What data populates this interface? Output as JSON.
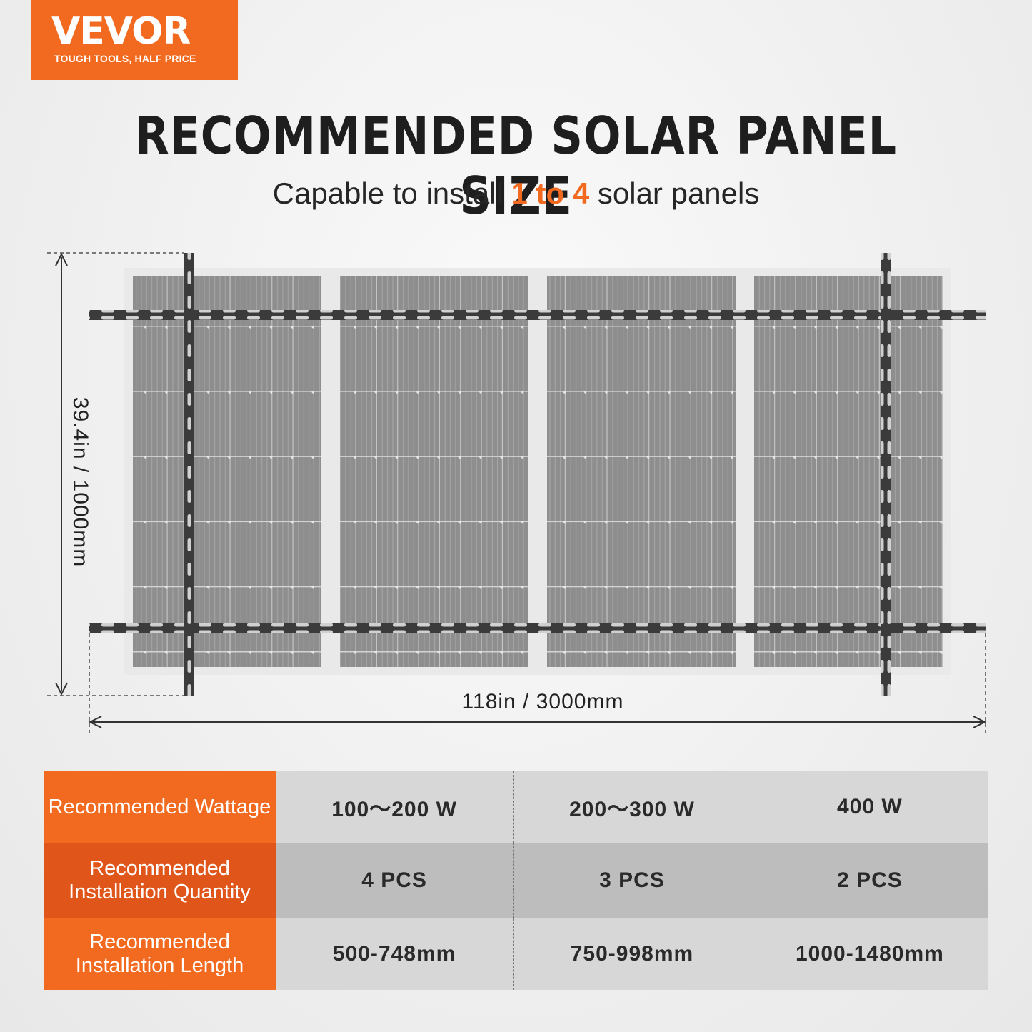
{
  "brand": {
    "name": "VEVOR",
    "tagline": "TOUGH TOOLS, HALF PRICE",
    "color": "#f26a1f"
  },
  "header": {
    "title": "RECOMMENDED SOLAR PANEL SIZE",
    "subtitle_pre": "Capable to install ",
    "subtitle_highlight": "1 to 4",
    "subtitle_post": " solar panels"
  },
  "diagram": {
    "panel_count": 4,
    "width_label": "118in / 3000mm",
    "height_label": "39.4in / 1000mm"
  },
  "spec_table": {
    "rows": [
      {
        "header": "Recommended Wattage",
        "values": [
          "100～200 W",
          "200～300 W",
          "400 W"
        ]
      },
      {
        "header": "Recommended Installation Quantity",
        "values": [
          "4 PCS",
          "3 PCS",
          "2 PCS"
        ]
      },
      {
        "header": "Recommended Installation Length",
        "values": [
          "500-748mm",
          "750-998mm",
          "1000-1480mm"
        ]
      }
    ]
  }
}
